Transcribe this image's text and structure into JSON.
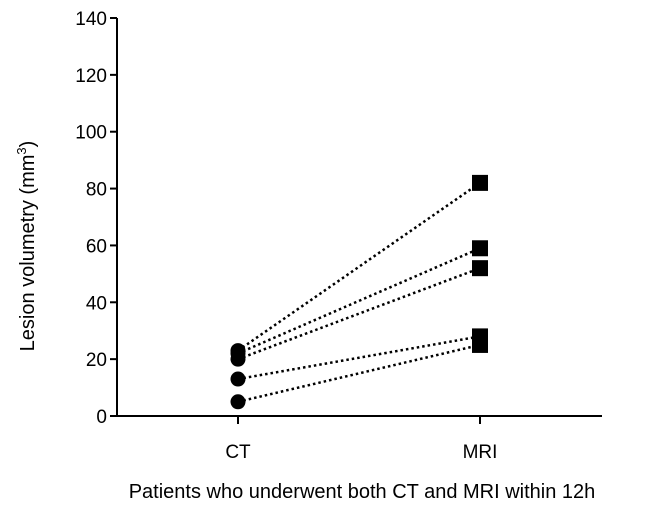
{
  "chart_data": {
    "type": "scatter",
    "title": "",
    "xlabel": "Patients who underwent both CT and MRI within 12h",
    "ylabel": {
      "text": "Lesion volumetry (mm",
      "superscript": "3",
      "suffix": ")"
    },
    "categories": [
      "CT",
      "MRI"
    ],
    "ylim": [
      0,
      140
    ],
    "yticks": [
      "0",
      "20",
      "40",
      "60",
      "80",
      "100",
      "120",
      "140"
    ],
    "grid": false,
    "legend": "none",
    "series": [
      {
        "values": [
          23,
          82
        ]
      },
      {
        "values": [
          22,
          59
        ]
      },
      {
        "values": [
          20,
          52
        ]
      },
      {
        "values": [
          13,
          28
        ]
      },
      {
        "values": [
          5,
          25
        ]
      }
    ],
    "markers": {
      "CT": "circle",
      "MRI": "square"
    },
    "colors": {
      "marker": "#000000",
      "line": "#000000"
    },
    "line_style": "dotted"
  }
}
